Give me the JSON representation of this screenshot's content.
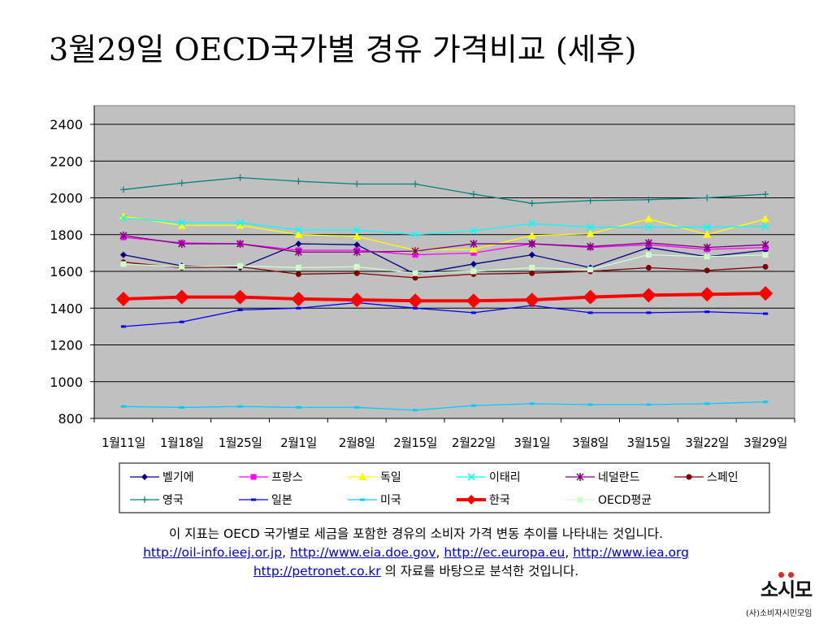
{
  "title": "3월29일 OECD국가별 경유 가격비교 (세후)",
  "caption": {
    "line1": "이 지표는 OECD 국가별로 세금을 포함한 경유의 소비자 가격 변동 추이를 나타내는 것입니다.",
    "links_row": [
      "http://oil-info.ieej.or.jp",
      "http://www.eia.doe.gov",
      "http://ec.europa.eu",
      "http://www.iea.org"
    ],
    "link_last": "http://petronet.co.kr",
    "line3_suffix": " 의 자료를 바탕으로 분석한 것입니다."
  },
  "logo": {
    "main": "소시모",
    "sub": "(사)소비자시민모임",
    "accent": "#d52b2b"
  },
  "chart_data": {
    "type": "line",
    "categories": [
      "1월11일",
      "1월18일",
      "1월25일",
      "2월1일",
      "2월8일",
      "2월15일",
      "2월22일",
      "3월1일",
      "3월8일",
      "3월15일",
      "3월22일",
      "3월29일"
    ],
    "ylim": [
      800,
      2400
    ],
    "yticks": [
      800,
      1000,
      1200,
      1400,
      1600,
      1800,
      2000,
      2200,
      2400
    ],
    "grid": true,
    "legend_position": "bottom",
    "plot_background": "#c0c0c0",
    "series": [
      {
        "name": "벨기에",
        "color": "#000080",
        "marker": "diamond",
        "values": [
          1690,
          1630,
          1620,
          1750,
          1745,
          1585,
          1640,
          1690,
          1620,
          1730,
          1680,
          1715
        ]
      },
      {
        "name": "프랑스",
        "color": "#ff00ff",
        "marker": "square",
        "values": [
          1785,
          1755,
          1750,
          1715,
          1715,
          1690,
          1700,
          1750,
          1730,
          1745,
          1720,
          1730
        ]
      },
      {
        "name": "독일",
        "color": "#ffff00",
        "marker": "triangle",
        "values": [
          1900,
          1850,
          1850,
          1800,
          1790,
          1715,
          1720,
          1795,
          1805,
          1885,
          1800,
          1885
        ]
      },
      {
        "name": "이태리",
        "color": "#00ffff",
        "marker": "x",
        "values": [
          1890,
          1865,
          1865,
          1825,
          1825,
          1800,
          1820,
          1860,
          1840,
          1840,
          1840,
          1845
        ]
      },
      {
        "name": "네덜란드",
        "color": "#800080",
        "marker": "star",
        "values": [
          1795,
          1750,
          1750,
          1705,
          1705,
          1710,
          1750,
          1750,
          1735,
          1755,
          1730,
          1745
        ]
      },
      {
        "name": "스페인",
        "color": "#800000",
        "marker": "circle",
        "values": [
          1650,
          1620,
          1625,
          1585,
          1590,
          1565,
          1585,
          1590,
          1600,
          1620,
          1605,
          1625
        ]
      },
      {
        "name": "영국",
        "color": "#008080",
        "marker": "plus",
        "values": [
          2045,
          2080,
          2110,
          2090,
          2075,
          2075,
          2020,
          1970,
          1985,
          1990,
          2000,
          2020
        ]
      },
      {
        "name": "일본",
        "color": "#0000ff",
        "marker": "dash",
        "values": [
          1300,
          1325,
          1390,
          1400,
          1430,
          1400,
          1375,
          1415,
          1375,
          1375,
          1380,
          1370
        ]
      },
      {
        "name": "미국",
        "color": "#00ccff",
        "marker": "dash",
        "values": [
          865,
          860,
          865,
          860,
          860,
          845,
          870,
          880,
          875,
          875,
          880,
          890
        ]
      },
      {
        "name": "한국",
        "color": "#ff0000",
        "marker": "diamond-big",
        "values": [
          1450,
          1460,
          1460,
          1450,
          1445,
          1440,
          1440,
          1445,
          1460,
          1470,
          1475,
          1480
        ]
      },
      {
        "name": "OECD평균",
        "color": "#ccffcc",
        "marker": "square",
        "values": [
          1640,
          1625,
          1630,
          1620,
          1625,
          1590,
          1600,
          1620,
          1610,
          1690,
          1680,
          1690
        ]
      }
    ]
  }
}
